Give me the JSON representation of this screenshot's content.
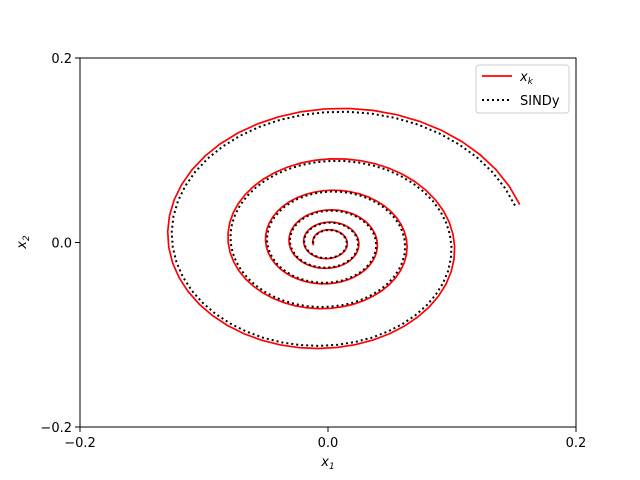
{
  "chart_data": {
    "type": "line",
    "title": "",
    "xlabel": "x",
    "xlabel_sub": "1",
    "ylabel": "x",
    "ylabel_sub": "2",
    "xlim": [
      -0.2,
      0.2
    ],
    "ylim": [
      -0.2,
      0.2
    ],
    "xticks": [
      -0.2,
      0.0,
      0.2
    ],
    "xtick_labels": [
      "−0.2",
      "0.0",
      "0.2"
    ],
    "yticks": [
      -0.2,
      0.0,
      0.2
    ],
    "ytick_labels": [
      "−0.2",
      "0.0",
      "0.2"
    ],
    "grid": false,
    "legend_position": "top-right",
    "spiral": {
      "start": [
        0.158,
        0.042
      ],
      "turns": 5.5,
      "radius_start": 0.16,
      "radius_end": 0.012
    },
    "series": [
      {
        "name": "x",
        "name_sub": "k",
        "color": "#ff0000",
        "style": "solid",
        "radius_scale": 1.0
      },
      {
        "name": "SINDy",
        "color": "#000000",
        "style": "dotted",
        "radius_scale": 0.975
      }
    ]
  }
}
